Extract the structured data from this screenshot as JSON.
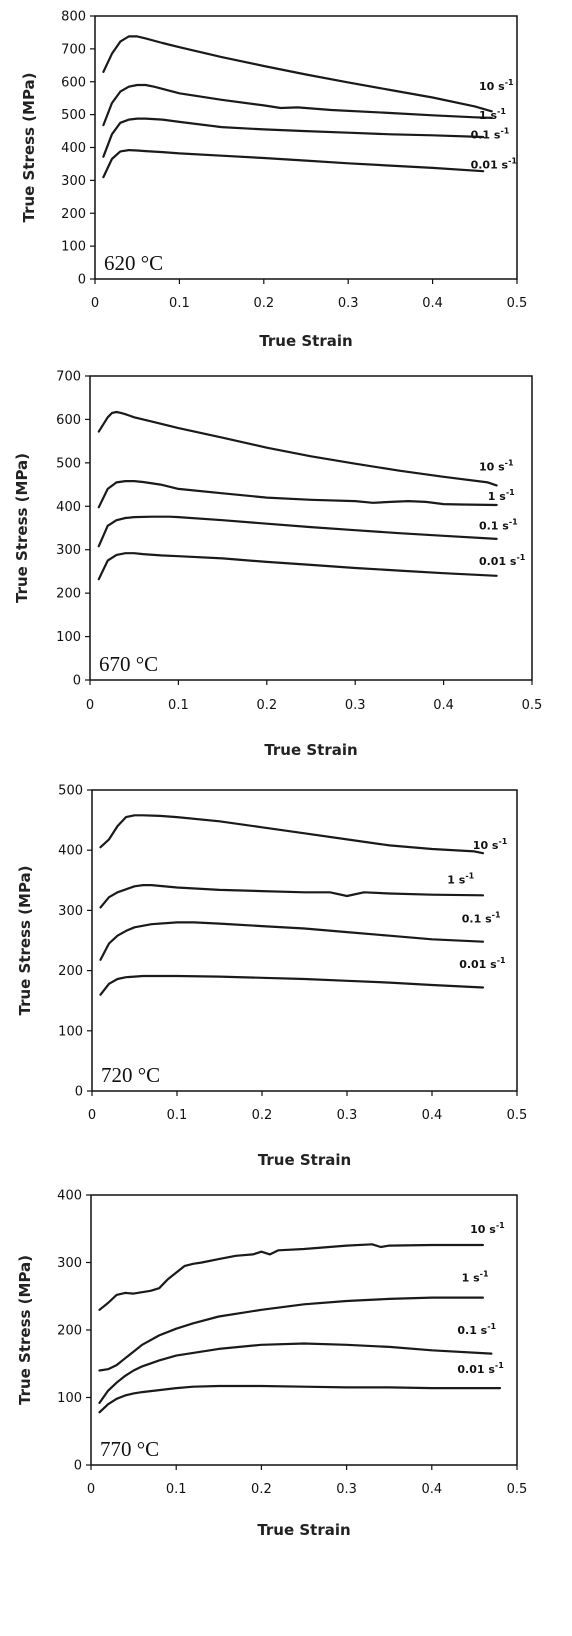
{
  "chart_data": [
    {
      "type": "line",
      "temperature_label": "620 °C",
      "xlabel": "True Strain",
      "ylabel": "True Stress (MPa)",
      "xlim": [
        0,
        0.5
      ],
      "ylim": [
        0,
        800
      ],
      "xticks": [
        "0",
        "0.1",
        "0.2",
        "0.3",
        "0.4",
        "0.5"
      ],
      "yticks": [
        "0",
        "100",
        "200",
        "300",
        "400",
        "500",
        "600",
        "700",
        "800"
      ],
      "series": [
        {
          "name": "10 s-1",
          "x": [
            0.01,
            0.02,
            0.03,
            0.04,
            0.05,
            0.06,
            0.08,
            0.1,
            0.15,
            0.2,
            0.25,
            0.3,
            0.35,
            0.4,
            0.45,
            0.47
          ],
          "y": [
            630,
            685,
            722,
            738,
            738,
            732,
            718,
            705,
            675,
            648,
            622,
            598,
            575,
            552,
            525,
            510
          ]
        },
        {
          "name": "1 s-1",
          "x": [
            0.01,
            0.02,
            0.03,
            0.04,
            0.05,
            0.06,
            0.07,
            0.1,
            0.15,
            0.2,
            0.22,
            0.24,
            0.28,
            0.35,
            0.4,
            0.45,
            0.47
          ],
          "y": [
            468,
            535,
            570,
            585,
            590,
            590,
            585,
            565,
            545,
            528,
            520,
            522,
            514,
            505,
            498,
            492,
            490
          ]
        },
        {
          "name": "0.1 s-1",
          "x": [
            0.01,
            0.02,
            0.03,
            0.04,
            0.05,
            0.06,
            0.08,
            0.1,
            0.15,
            0.2,
            0.25,
            0.3,
            0.35,
            0.4,
            0.46
          ],
          "y": [
            372,
            440,
            475,
            485,
            488,
            488,
            485,
            478,
            462,
            455,
            450,
            445,
            440,
            437,
            432
          ]
        },
        {
          "name": "0.01 s-1",
          "x": [
            0.01,
            0.02,
            0.03,
            0.04,
            0.05,
            0.06,
            0.08,
            0.1,
            0.15,
            0.2,
            0.25,
            0.3,
            0.35,
            0.4,
            0.46
          ],
          "y": [
            310,
            365,
            388,
            392,
            391,
            389,
            386,
            382,
            375,
            368,
            360,
            352,
            345,
            338,
            328
          ]
        }
      ],
      "series_labels": [
        {
          "text": "10 s",
          "sup": "-1",
          "x": 0.455,
          "y": 575
        },
        {
          "text": "1 s",
          "sup": "-1",
          "x": 0.455,
          "y": 486
        },
        {
          "text": "0.1 s",
          "sup": "-1",
          "x": 0.445,
          "y": 428
        },
        {
          "text": "0.01 s",
          "sup": "-1",
          "x": 0.445,
          "y": 336
        }
      ]
    },
    {
      "type": "line",
      "temperature_label": "670 °C",
      "xlabel": "True Strain",
      "ylabel": "True Stress (MPa)",
      "xlim": [
        0,
        0.5
      ],
      "ylim": [
        0,
        700
      ],
      "xticks": [
        "0",
        "0.1",
        "0.2",
        "0.3",
        "0.4",
        "0.5"
      ],
      "yticks": [
        "0",
        "100",
        "200",
        "300",
        "400",
        "500",
        "600",
        "700"
      ],
      "series": [
        {
          "name": "10 s-1",
          "x": [
            0.01,
            0.02,
            0.025,
            0.03,
            0.035,
            0.04,
            0.05,
            0.07,
            0.1,
            0.15,
            0.2,
            0.25,
            0.3,
            0.35,
            0.4,
            0.45,
            0.46
          ],
          "y": [
            572,
            605,
            615,
            617,
            615,
            612,
            605,
            595,
            580,
            558,
            535,
            515,
            498,
            482,
            468,
            455,
            448
          ]
        },
        {
          "name": "1 s-1",
          "x": [
            0.01,
            0.02,
            0.03,
            0.04,
            0.05,
            0.06,
            0.08,
            0.1,
            0.15,
            0.2,
            0.25,
            0.3,
            0.32,
            0.34,
            0.36,
            0.38,
            0.4,
            0.42,
            0.46
          ],
          "y": [
            398,
            440,
            455,
            458,
            458,
            456,
            450,
            440,
            430,
            420,
            415,
            412,
            408,
            410,
            412,
            410,
            405,
            404,
            403
          ]
        },
        {
          "name": "0.1 s-1",
          "x": [
            0.01,
            0.02,
            0.03,
            0.04,
            0.05,
            0.07,
            0.09,
            0.1,
            0.15,
            0.2,
            0.25,
            0.3,
            0.35,
            0.4,
            0.46
          ],
          "y": [
            308,
            355,
            368,
            373,
            375,
            376,
            376,
            375,
            368,
            360,
            352,
            345,
            338,
            332,
            325
          ]
        },
        {
          "name": "0.01 s-1",
          "x": [
            0.01,
            0.02,
            0.03,
            0.04,
            0.05,
            0.06,
            0.08,
            0.1,
            0.15,
            0.2,
            0.25,
            0.3,
            0.35,
            0.4,
            0.46
          ],
          "y": [
            232,
            275,
            288,
            292,
            292,
            290,
            287,
            285,
            280,
            272,
            265,
            258,
            252,
            246,
            240
          ]
        }
      ],
      "series_labels": [
        {
          "text": "10 s",
          "sup": "-1",
          "x": 0.44,
          "y": 482
        },
        {
          "text": "1 s",
          "sup": "-1",
          "x": 0.45,
          "y": 415
        },
        {
          "text": "0.1 s",
          "sup": "-1",
          "x": 0.44,
          "y": 346
        },
        {
          "text": "0.01 s",
          "sup": "-1",
          "x": 0.44,
          "y": 265
        }
      ]
    },
    {
      "type": "line",
      "temperature_label": "720 °C",
      "xlabel": "True Strain",
      "ylabel": "True Stress (MPa)",
      "xlim": [
        0,
        0.5
      ],
      "ylim": [
        0,
        500
      ],
      "xticks": [
        "0",
        "0.1",
        "0.2",
        "0.3",
        "0.4",
        "0.5"
      ],
      "yticks": [
        "0",
        "100",
        "200",
        "300",
        "400",
        "500"
      ],
      "series": [
        {
          "name": "10 s-1",
          "x": [
            0.01,
            0.02,
            0.03,
            0.04,
            0.05,
            0.06,
            0.08,
            0.1,
            0.15,
            0.2,
            0.25,
            0.3,
            0.35,
            0.4,
            0.45,
            0.46
          ],
          "y": [
            405,
            418,
            440,
            455,
            458,
            458,
            457,
            455,
            448,
            438,
            428,
            418,
            408,
            402,
            398,
            395
          ]
        },
        {
          "name": "1 s-1",
          "x": [
            0.01,
            0.02,
            0.03,
            0.04,
            0.05,
            0.06,
            0.07,
            0.1,
            0.15,
            0.2,
            0.25,
            0.28,
            0.3,
            0.32,
            0.35,
            0.4,
            0.46
          ],
          "y": [
            305,
            322,
            330,
            335,
            340,
            342,
            342,
            338,
            334,
            332,
            330,
            330,
            324,
            330,
            328,
            326,
            325
          ]
        },
        {
          "name": "0.1 s-1",
          "x": [
            0.01,
            0.02,
            0.03,
            0.04,
            0.05,
            0.07,
            0.1,
            0.12,
            0.15,
            0.2,
            0.25,
            0.3,
            0.35,
            0.4,
            0.46
          ],
          "y": [
            218,
            245,
            258,
            266,
            272,
            277,
            280,
            280,
            278,
            274,
            270,
            264,
            258,
            252,
            248
          ]
        },
        {
          "name": "0.01 s-1",
          "x": [
            0.01,
            0.02,
            0.03,
            0.04,
            0.05,
            0.06,
            0.08,
            0.1,
            0.15,
            0.2,
            0.25,
            0.3,
            0.35,
            0.4,
            0.46
          ],
          "y": [
            160,
            178,
            186,
            189,
            190,
            191,
            191,
            191,
            190,
            188,
            186,
            183,
            180,
            176,
            172
          ]
        }
      ],
      "series_labels": [
        {
          "text": "10 s",
          "sup": "-1",
          "x": 0.448,
          "y": 402
        },
        {
          "text": "1 s",
          "sup": "-1",
          "x": 0.418,
          "y": 345
        },
        {
          "text": "0.1 s",
          "sup": "-1",
          "x": 0.435,
          "y": 280
        },
        {
          "text": "0.01 s",
          "sup": "-1",
          "x": 0.432,
          "y": 204
        }
      ]
    },
    {
      "type": "line",
      "temperature_label": "770 °C",
      "xlabel": "True Strain",
      "ylabel": "True Stress (MPa)",
      "xlim": [
        0,
        0.5
      ],
      "ylim": [
        0,
        400
      ],
      "xticks": [
        "0",
        "0.1",
        "0.2",
        "0.3",
        "0.4",
        "0.5"
      ],
      "yticks": [
        "0",
        "100",
        "200",
        "300",
        "400"
      ],
      "series": [
        {
          "name": "10 s-1",
          "x": [
            0.01,
            0.02,
            0.03,
            0.04,
            0.05,
            0.06,
            0.07,
            0.08,
            0.09,
            0.1,
            0.11,
            0.12,
            0.13,
            0.15,
            0.17,
            0.19,
            0.2,
            0.21,
            0.22,
            0.25,
            0.3,
            0.33,
            0.34,
            0.35,
            0.4,
            0.46
          ],
          "y": [
            230,
            240,
            252,
            255,
            254,
            256,
            258,
            262,
            275,
            285,
            295,
            298,
            300,
            305,
            310,
            312,
            316,
            312,
            318,
            320,
            325,
            327,
            323,
            325,
            326,
            326
          ]
        },
        {
          "name": "1 s-1",
          "x": [
            0.01,
            0.02,
            0.03,
            0.04,
            0.05,
            0.06,
            0.08,
            0.1,
            0.12,
            0.15,
            0.2,
            0.25,
            0.3,
            0.35,
            0.4,
            0.46
          ],
          "y": [
            140,
            142,
            148,
            158,
            168,
            178,
            192,
            202,
            210,
            220,
            230,
            238,
            243,
            246,
            248,
            248
          ]
        },
        {
          "name": "0.1 s-1",
          "x": [
            0.01,
            0.02,
            0.03,
            0.04,
            0.05,
            0.06,
            0.08,
            0.1,
            0.15,
            0.2,
            0.25,
            0.3,
            0.35,
            0.4,
            0.47
          ],
          "y": [
            92,
            110,
            122,
            132,
            140,
            146,
            155,
            162,
            172,
            178,
            180,
            178,
            175,
            170,
            165
          ]
        },
        {
          "name": "0.01 s-1",
          "x": [
            0.01,
            0.02,
            0.03,
            0.04,
            0.05,
            0.06,
            0.08,
            0.1,
            0.12,
            0.15,
            0.2,
            0.25,
            0.3,
            0.35,
            0.4,
            0.48
          ],
          "y": [
            78,
            90,
            98,
            103,
            106,
            108,
            111,
            114,
            116,
            117,
            117,
            116,
            115,
            115,
            114,
            114
          ]
        }
      ],
      "series_labels": [
        {
          "text": "10 s",
          "sup": "-1",
          "x": 0.445,
          "y": 344
        },
        {
          "text": "1 s",
          "sup": "-1",
          "x": 0.435,
          "y": 272
        },
        {
          "text": "0.1 s",
          "sup": "-1",
          "x": 0.43,
          "y": 194
        },
        {
          "text": "0.01 s",
          "sup": "-1",
          "x": 0.43,
          "y": 136
        }
      ]
    }
  ]
}
